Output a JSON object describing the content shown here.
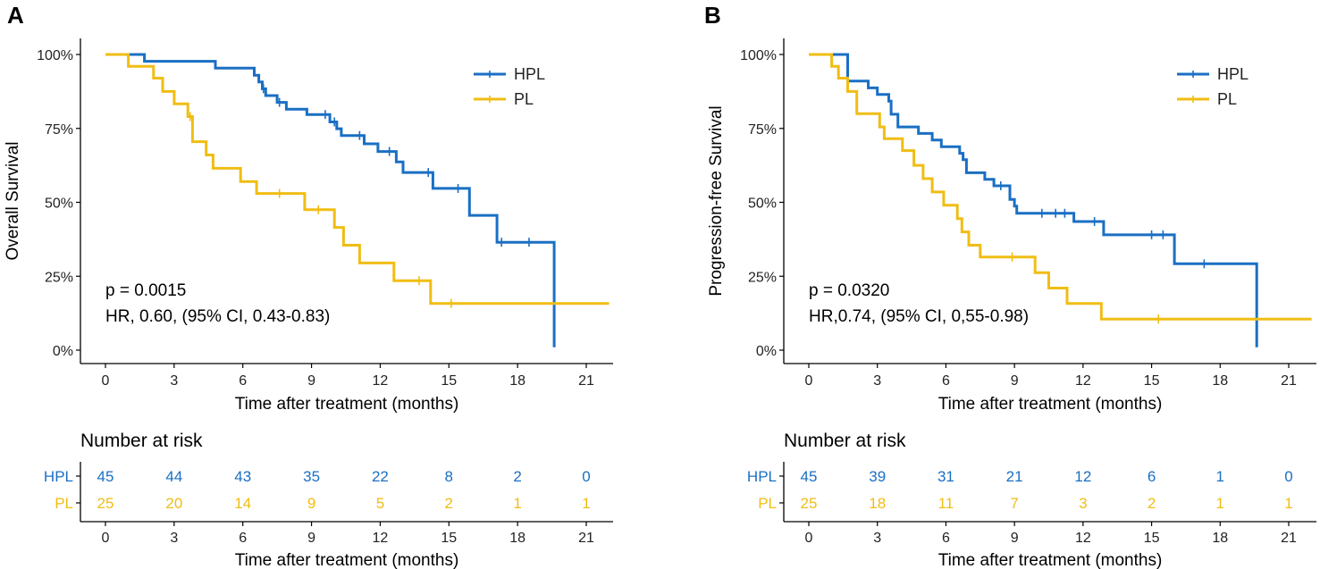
{
  "colors": {
    "hpl": "#1a6fc4",
    "pl": "#f0bd14",
    "axis": "#000000"
  },
  "chart_data": [
    {
      "type": "line",
      "panel_label": "A",
      "xlabel": "Time after treatment (months)",
      "ylabel": "Overall Survival",
      "xlim": [
        0,
        22
      ],
      "ylim": [
        0,
        1
      ],
      "x_ticks": [
        0,
        3,
        6,
        9,
        12,
        15,
        18,
        21
      ],
      "y_ticks": [
        0,
        0.25,
        0.5,
        0.75,
        1.0
      ],
      "y_tick_labels": [
        "0%",
        "25%",
        "50%",
        "75%",
        "100%"
      ],
      "legend": [
        "HPL",
        "PL"
      ],
      "annotations": [
        "p = 0.0015",
        "HR, 0.60, (95% CI, 0.43-0.83)"
      ],
      "series": [
        {
          "name": "HPL",
          "steps": [
            [
              0,
              1.0
            ],
            [
              1.7,
              1.0
            ],
            [
              1.7,
              0.977
            ],
            [
              4.8,
              0.977
            ],
            [
              4.8,
              0.954
            ],
            [
              6.5,
              0.954
            ],
            [
              6.5,
              0.93
            ],
            [
              6.7,
              0.93
            ],
            [
              6.7,
              0.907
            ],
            [
              6.85,
              0.907
            ],
            [
              6.85,
              0.884
            ],
            [
              7.0,
              0.884
            ],
            [
              7.0,
              0.861
            ],
            [
              7.5,
              0.861
            ],
            [
              7.5,
              0.838
            ],
            [
              7.9,
              0.838
            ],
            [
              7.9,
              0.815
            ],
            [
              8.8,
              0.815
            ],
            [
              8.8,
              0.797
            ],
            [
              9.8,
              0.797
            ],
            [
              9.8,
              0.772
            ],
            [
              10.1,
              0.772
            ],
            [
              10.1,
              0.749
            ],
            [
              10.3,
              0.749
            ],
            [
              10.3,
              0.726
            ],
            [
              11.3,
              0.726
            ],
            [
              11.3,
              0.698
            ],
            [
              11.9,
              0.698
            ],
            [
              11.9,
              0.672
            ],
            [
              12.7,
              0.672
            ],
            [
              12.7,
              0.637
            ],
            [
              13.0,
              0.637
            ],
            [
              13.0,
              0.601
            ],
            [
              14.3,
              0.601
            ],
            [
              14.3,
              0.547
            ],
            [
              15.9,
              0.547
            ],
            [
              15.9,
              0.456
            ],
            [
              17.1,
              0.456
            ],
            [
              17.1,
              0.365
            ],
            [
              19.6,
              0.365
            ],
            [
              19.6,
              0.01
            ]
          ],
          "censor_x": [
            6.9,
            7.6,
            9.6,
            10.0,
            11.1,
            12.4,
            14.1,
            15.4,
            17.3,
            18.5
          ]
        },
        {
          "name": "PL",
          "steps": [
            [
              0,
              1.0
            ],
            [
              1.0,
              1.0
            ],
            [
              1.0,
              0.96
            ],
            [
              2.1,
              0.96
            ],
            [
              2.1,
              0.92
            ],
            [
              2.5,
              0.92
            ],
            [
              2.5,
              0.875
            ],
            [
              3.0,
              0.875
            ],
            [
              3.0,
              0.833
            ],
            [
              3.6,
              0.833
            ],
            [
              3.6,
              0.79
            ],
            [
              3.8,
              0.79
            ],
            [
              3.8,
              0.705
            ],
            [
              4.4,
              0.705
            ],
            [
              4.4,
              0.66
            ],
            [
              4.7,
              0.66
            ],
            [
              4.7,
              0.615
            ],
            [
              5.9,
              0.615
            ],
            [
              5.9,
              0.57
            ],
            [
              6.6,
              0.57
            ],
            [
              6.6,
              0.53
            ],
            [
              8.7,
              0.53
            ],
            [
              8.7,
              0.475
            ],
            [
              10.0,
              0.475
            ],
            [
              10.0,
              0.415
            ],
            [
              10.4,
              0.415
            ],
            [
              10.4,
              0.355
            ],
            [
              11.1,
              0.355
            ],
            [
              11.1,
              0.295
            ],
            [
              12.6,
              0.295
            ],
            [
              12.6,
              0.235
            ],
            [
              14.2,
              0.235
            ],
            [
              14.2,
              0.158
            ],
            [
              22.0,
              0.158
            ]
          ],
          "censor_x": [
            3.7,
            7.6,
            9.3,
            13.7,
            15.1
          ]
        }
      ],
      "risk_table": {
        "title": "Number at risk",
        "xlabel": "Time after treatment (months)",
        "times": [
          0,
          3,
          6,
          9,
          12,
          15,
          18,
          21
        ],
        "rows": [
          {
            "label": "HPL",
            "values": [
              45,
              44,
              43,
              35,
              22,
              8,
              2,
              0
            ]
          },
          {
            "label": "PL",
            "values": [
              25,
              20,
              14,
              9,
              5,
              2,
              1,
              1
            ]
          }
        ]
      }
    },
    {
      "type": "line",
      "panel_label": "B",
      "xlabel": "Time after treatment (months)",
      "ylabel": "Progression-free Survival",
      "xlim": [
        0,
        22
      ],
      "ylim": [
        0,
        1
      ],
      "x_ticks": [
        0,
        3,
        6,
        9,
        12,
        15,
        18,
        21
      ],
      "y_ticks": [
        0,
        0.25,
        0.5,
        0.75,
        1.0
      ],
      "y_tick_labels": [
        "0%",
        "25%",
        "50%",
        "75%",
        "100%"
      ],
      "legend": [
        "HPL",
        "PL"
      ],
      "annotations": [
        "p = 0.0320",
        "HR,0.74, (95% CI, 0,55-0.98)"
      ],
      "series": [
        {
          "name": "HPL",
          "steps": [
            [
              0,
              1.0
            ],
            [
              1.7,
              1.0
            ],
            [
              1.7,
              0.91
            ],
            [
              2.6,
              0.91
            ],
            [
              2.6,
              0.887
            ],
            [
              3.0,
              0.887
            ],
            [
              3.0,
              0.865
            ],
            [
              3.5,
              0.865
            ],
            [
              3.5,
              0.842
            ],
            [
              3.6,
              0.842
            ],
            [
              3.6,
              0.798
            ],
            [
              3.9,
              0.798
            ],
            [
              3.9,
              0.755
            ],
            [
              4.8,
              0.755
            ],
            [
              4.8,
              0.733
            ],
            [
              5.4,
              0.733
            ],
            [
              5.4,
              0.711
            ],
            [
              5.8,
              0.711
            ],
            [
              5.8,
              0.688
            ],
            [
              6.6,
              0.688
            ],
            [
              6.6,
              0.666
            ],
            [
              6.75,
              0.666
            ],
            [
              6.75,
              0.644
            ],
            [
              6.9,
              0.644
            ],
            [
              6.9,
              0.6
            ],
            [
              7.7,
              0.6
            ],
            [
              7.7,
              0.578
            ],
            [
              8.1,
              0.578
            ],
            [
              8.1,
              0.556
            ],
            [
              8.8,
              0.556
            ],
            [
              8.8,
              0.51
            ],
            [
              9.0,
              0.51
            ],
            [
              9.0,
              0.487
            ],
            [
              9.1,
              0.487
            ],
            [
              9.1,
              0.463
            ],
            [
              11.6,
              0.463
            ],
            [
              11.6,
              0.435
            ],
            [
              12.9,
              0.435
            ],
            [
              12.9,
              0.39
            ],
            [
              16.0,
              0.39
            ],
            [
              16.0,
              0.292
            ],
            [
              19.6,
              0.292
            ],
            [
              19.6,
              0.01
            ]
          ],
          "censor_x": [
            8.4,
            10.2,
            10.8,
            11.2,
            12.5,
            15.0,
            15.5,
            17.3
          ]
        },
        {
          "name": "PL",
          "steps": [
            [
              0,
              1.0
            ],
            [
              1.0,
              1.0
            ],
            [
              1.0,
              0.96
            ],
            [
              1.3,
              0.96
            ],
            [
              1.3,
              0.92
            ],
            [
              1.7,
              0.92
            ],
            [
              1.7,
              0.875
            ],
            [
              2.1,
              0.875
            ],
            [
              2.1,
              0.8
            ],
            [
              3.1,
              0.8
            ],
            [
              3.1,
              0.755
            ],
            [
              3.3,
              0.755
            ],
            [
              3.3,
              0.715
            ],
            [
              4.1,
              0.715
            ],
            [
              4.1,
              0.675
            ],
            [
              4.6,
              0.675
            ],
            [
              4.6,
              0.625
            ],
            [
              5.0,
              0.625
            ],
            [
              5.0,
              0.58
            ],
            [
              5.4,
              0.58
            ],
            [
              5.4,
              0.535
            ],
            [
              5.9,
              0.535
            ],
            [
              5.9,
              0.49
            ],
            [
              6.5,
              0.49
            ],
            [
              6.5,
              0.445
            ],
            [
              6.7,
              0.445
            ],
            [
              6.7,
              0.4
            ],
            [
              7.0,
              0.4
            ],
            [
              7.0,
              0.355
            ],
            [
              7.5,
              0.355
            ],
            [
              7.5,
              0.315
            ],
            [
              9.9,
              0.315
            ],
            [
              9.9,
              0.262
            ],
            [
              10.5,
              0.262
            ],
            [
              10.5,
              0.21
            ],
            [
              11.3,
              0.21
            ],
            [
              11.3,
              0.158
            ],
            [
              12.8,
              0.158
            ],
            [
              12.8,
              0.105
            ],
            [
              22.0,
              0.105
            ]
          ],
          "censor_x": [
            8.9,
            15.3
          ]
        }
      ],
      "risk_table": {
        "title": "Number at risk",
        "xlabel": "Time after treatment (months)",
        "times": [
          0,
          3,
          6,
          9,
          12,
          15,
          18,
          21
        ],
        "rows": [
          {
            "label": "HPL",
            "values": [
              45,
              39,
              31,
              21,
              12,
              6,
              1,
              0
            ]
          },
          {
            "label": "PL",
            "values": [
              25,
              18,
              11,
              7,
              3,
              2,
              1,
              1
            ]
          }
        ]
      }
    }
  ]
}
